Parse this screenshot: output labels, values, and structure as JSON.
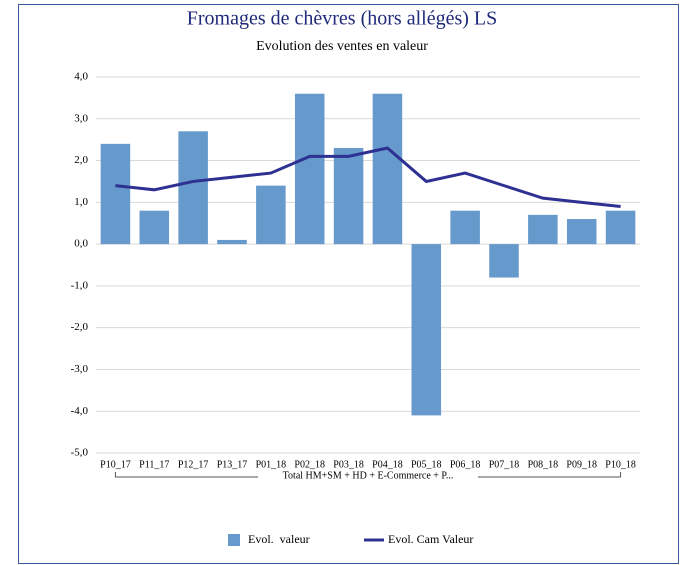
{
  "chart_data": {
    "type": "bar",
    "title": "Fromages de chèvres (hors allégés) LS",
    "subtitle": "Evolution des ventes en valeur",
    "group_label": "Total HM+SM + HD + E-Commerce + P...",
    "categories": [
      "P10_17",
      "P11_17",
      "P12_17",
      "P13_17",
      "P01_18",
      "P02_18",
      "P03_18",
      "P04_18",
      "P05_18",
      "P06_18",
      "P07_18",
      "P08_18",
      "P09_18",
      "P10_18"
    ],
    "series": [
      {
        "name": "Evol.  valeur",
        "type": "bar",
        "color": "#6699cc",
        "values": [
          2.4,
          0.8,
          2.7,
          0.1,
          1.4,
          3.6,
          2.3,
          3.6,
          -4.1,
          0.8,
          -0.8,
          0.7,
          0.6,
          0.8
        ]
      },
      {
        "name": "Evol. Cam Valeur",
        "type": "line",
        "color": "#2e3192",
        "values": [
          1.4,
          1.3,
          1.5,
          1.6,
          1.7,
          2.1,
          2.1,
          2.3,
          1.5,
          1.7,
          1.4,
          1.1,
          1.0,
          0.9
        ]
      }
    ],
    "ylim": [
      -5,
      4
    ],
    "yticks": [
      {
        "value": -5,
        "label": "-5,0"
      },
      {
        "value": -4,
        "label": "-4,0"
      },
      {
        "value": -3,
        "label": "-3,0"
      },
      {
        "value": -2,
        "label": "-2,0"
      },
      {
        "value": -1,
        "label": "-1,0"
      },
      {
        "value": 0,
        "label": "0,0"
      },
      {
        "value": 1,
        "label": "1,0"
      },
      {
        "value": 2,
        "label": "2,0"
      },
      {
        "value": 3,
        "label": "3,0"
      },
      {
        "value": 4,
        "label": "4,0"
      }
    ],
    "grid": true,
    "legend": "bottom"
  }
}
